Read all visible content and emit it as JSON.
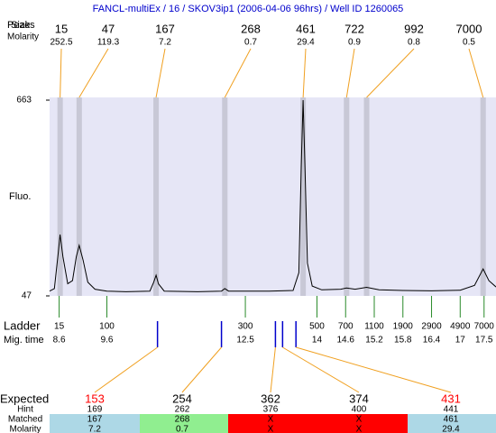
{
  "chart_data": {
    "type": "line",
    "title": "FANCL-multiEx / 16 / SKOV3ip1 (2006-04-06 96hrs) / Well ID 1260065",
    "labels": {
      "peaks": "Peaks",
      "size": "Size",
      "molarity": "Molarity",
      "fluo": "Fluo.",
      "ladder": "Ladder",
      "mig_time": "Mig. time",
      "expected": "Expected",
      "hint": "Hint",
      "matched": "Matched",
      "molarity_row": "Molarity"
    },
    "xlim": [
      8.4,
      17.75
    ],
    "ylim": [
      47,
      663
    ],
    "yticks": [
      47,
      663
    ],
    "x": [
      8.4,
      8.5,
      8.58,
      8.62,
      8.68,
      8.78,
      8.88,
      8.96,
      9.02,
      9.1,
      9.2,
      9.35,
      9.6,
      10.0,
      10.5,
      10.58,
      10.63,
      10.68,
      10.8,
      11.5,
      12.0,
      12.07,
      12.15,
      13.0,
      13.5,
      13.62,
      13.67,
      13.71,
      13.75,
      13.8,
      13.9,
      14.1,
      14.5,
      14.62,
      14.8,
      15.04,
      15.3,
      15.8,
      16.4,
      17.0,
      17.3,
      17.48,
      17.6,
      17.75
    ],
    "series": [
      {
        "color": "#000000",
        "values": [
          62,
          70,
          180,
          240,
          170,
          85,
          95,
          170,
          206,
          160,
          90,
          68,
          62,
          60,
          62,
          90,
          112,
          85,
          62,
          60,
          62,
          70,
          62,
          62,
          64,
          120,
          450,
          663,
          450,
          150,
          78,
          66,
          68,
          72,
          68,
          74,
          66,
          64,
          63,
          65,
          80,
          132,
          95,
          75
        ]
      }
    ],
    "peaks": {
      "sizes": [
        15,
        47,
        167,
        268,
        461,
        722,
        992,
        7000
      ],
      "molarity": [
        252.5,
        119.3,
        7.2,
        0.7,
        29.4,
        0.9,
        0.8,
        0.5
      ],
      "times": [
        8.62,
        9.02,
        10.63,
        12.07,
        13.71,
        14.62,
        15.04,
        17.48
      ]
    },
    "ladder": {
      "sizes": [
        15,
        100,
        300,
        500,
        700,
        1100,
        1900,
        2900,
        4900,
        7000
      ],
      "times": [
        8.6,
        9.6,
        12.5,
        14,
        14.6,
        15.2,
        15.8,
        16.4,
        17,
        17.5
      ]
    },
    "expected": {
      "values": [
        153,
        254,
        362,
        374,
        431
      ],
      "colors": [
        "#ff0000",
        "#000000",
        "#000000",
        "#000000",
        "#ff0000"
      ],
      "times": [
        10.66,
        12.0,
        13.13,
        13.28,
        13.56
      ],
      "hint": [
        169,
        262,
        376,
        400,
        441
      ],
      "matched": [
        167,
        268,
        "X",
        "X",
        461
      ],
      "molarity": [
        7.2,
        0.7,
        "X",
        "X",
        29.4
      ],
      "cell_colors": [
        "#add8e6",
        "#90ee90",
        "#ff0000",
        "#ff0000",
        "#add8e6"
      ]
    }
  }
}
